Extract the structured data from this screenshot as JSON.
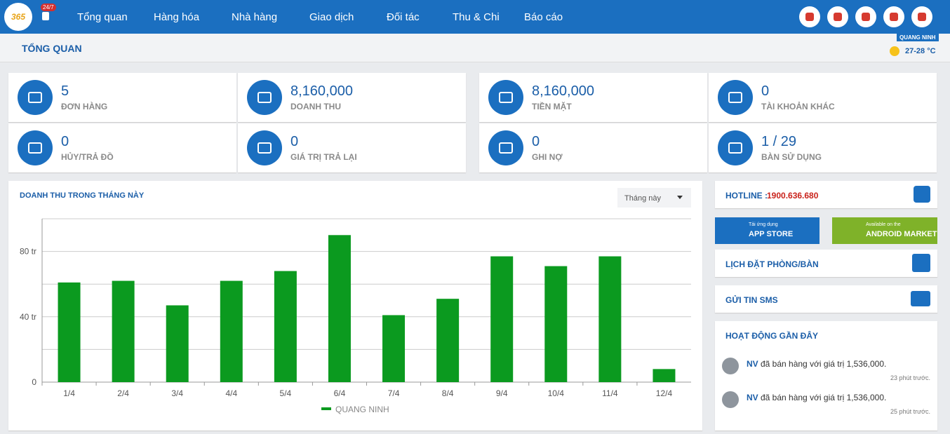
{
  "nav": {
    "logo": "365",
    "badge": "24/7",
    "items": [
      "Tổng quan",
      "Hàng hóa",
      "Nhà hàng",
      "Giao dịch",
      "Đối tác",
      "Thu & Chi",
      "Báo cáo"
    ]
  },
  "header": {
    "title": "TỔNG QUAN",
    "location": "QUANG NINH",
    "weather": "27-28 °C"
  },
  "stats": [
    {
      "value": "5",
      "label": "ĐƠN HÀNG"
    },
    {
      "value": "8,160,000",
      "label": "DOANH THU"
    },
    {
      "value": "8,160,000",
      "label": "TIỀN MẶT"
    },
    {
      "value": "0",
      "label": "TÀI KHOẢN KHÁC"
    },
    {
      "value": "0",
      "label": "HỦY/TRẢ ĐỒ"
    },
    {
      "value": "0",
      "label": "GIÁ TRỊ TRẢ LẠI"
    },
    {
      "value": "0",
      "label": "GHI NỢ"
    },
    {
      "value": "1 / 29",
      "label": "BÀN SỬ DỤNG"
    }
  ],
  "chart_data": {
    "type": "bar",
    "title": "DOANH THU TRONG THÁNG NÀY",
    "period": "Tháng này",
    "categories": [
      "1/4",
      "2/4",
      "3/4",
      "4/4",
      "5/4",
      "6/4",
      "7/4",
      "8/4",
      "9/4",
      "10/4",
      "11/4",
      "12/4"
    ],
    "series": [
      {
        "name": "QUANG NINH",
        "color": "#0b9a1f",
        "values": [
          61,
          62,
          47,
          62,
          68,
          90,
          41,
          51,
          77,
          71,
          77,
          8
        ]
      }
    ],
    "ylim": [
      0,
      100
    ],
    "yticks": [
      0,
      {
        "value": 40,
        "label": "40 tr"
      },
      {
        "value": 80,
        "label": "80 tr"
      }
    ],
    "minor_yticks": [
      20,
      60,
      100
    ],
    "grid": true,
    "legend": "bottom"
  },
  "sidebar": {
    "hotline_label": "HOTLINE :",
    "hotline": "1900.636.680",
    "appstore_small": "Tải ứng dụng",
    "appstore": "APP STORE",
    "android_small": "Available on the",
    "android": "ANDROID MARKET",
    "booking": "LỊCH ĐẶT PHÒNG/BÀN",
    "sms": "GỬI TIN SMS",
    "activity_title": "HOẠT ĐỘNG GẦN ĐÂY",
    "activities": [
      {
        "user": "NV",
        "text": "đã bán hàng với giá trị 1,536,000.",
        "time": "23 phút trước."
      },
      {
        "user": "NV",
        "text": "đã bán hàng với giá trị 1,536,000.",
        "time": "25 phút trước."
      }
    ]
  }
}
